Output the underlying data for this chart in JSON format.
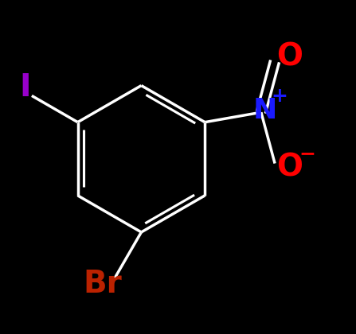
{
  "background_color": "#000000",
  "bond_color": "#ffffff",
  "bond_width": 2.5,
  "label_I": {
    "text": "I",
    "color": "#9900cc",
    "fontsize": 28,
    "fontweight": "bold"
  },
  "label_Br": {
    "text": "Br",
    "color": "#bb2200",
    "fontsize": 28,
    "fontweight": "bold"
  },
  "label_N": {
    "text": "N",
    "color": "#1a1aff",
    "fontsize": 26,
    "fontweight": "bold"
  },
  "label_Nplus": {
    "text": "+",
    "color": "#1a1aff",
    "fontsize": 18,
    "fontweight": "bold"
  },
  "label_O_top": {
    "text": "O",
    "color": "#ff0000",
    "fontsize": 28,
    "fontweight": "bold"
  },
  "label_O_bot": {
    "text": "O",
    "color": "#ff0000",
    "fontsize": 28,
    "fontweight": "bold"
  },
  "label_Ominus": {
    "text": "−",
    "color": "#ff0000",
    "fontsize": 18,
    "fontweight": "bold"
  }
}
